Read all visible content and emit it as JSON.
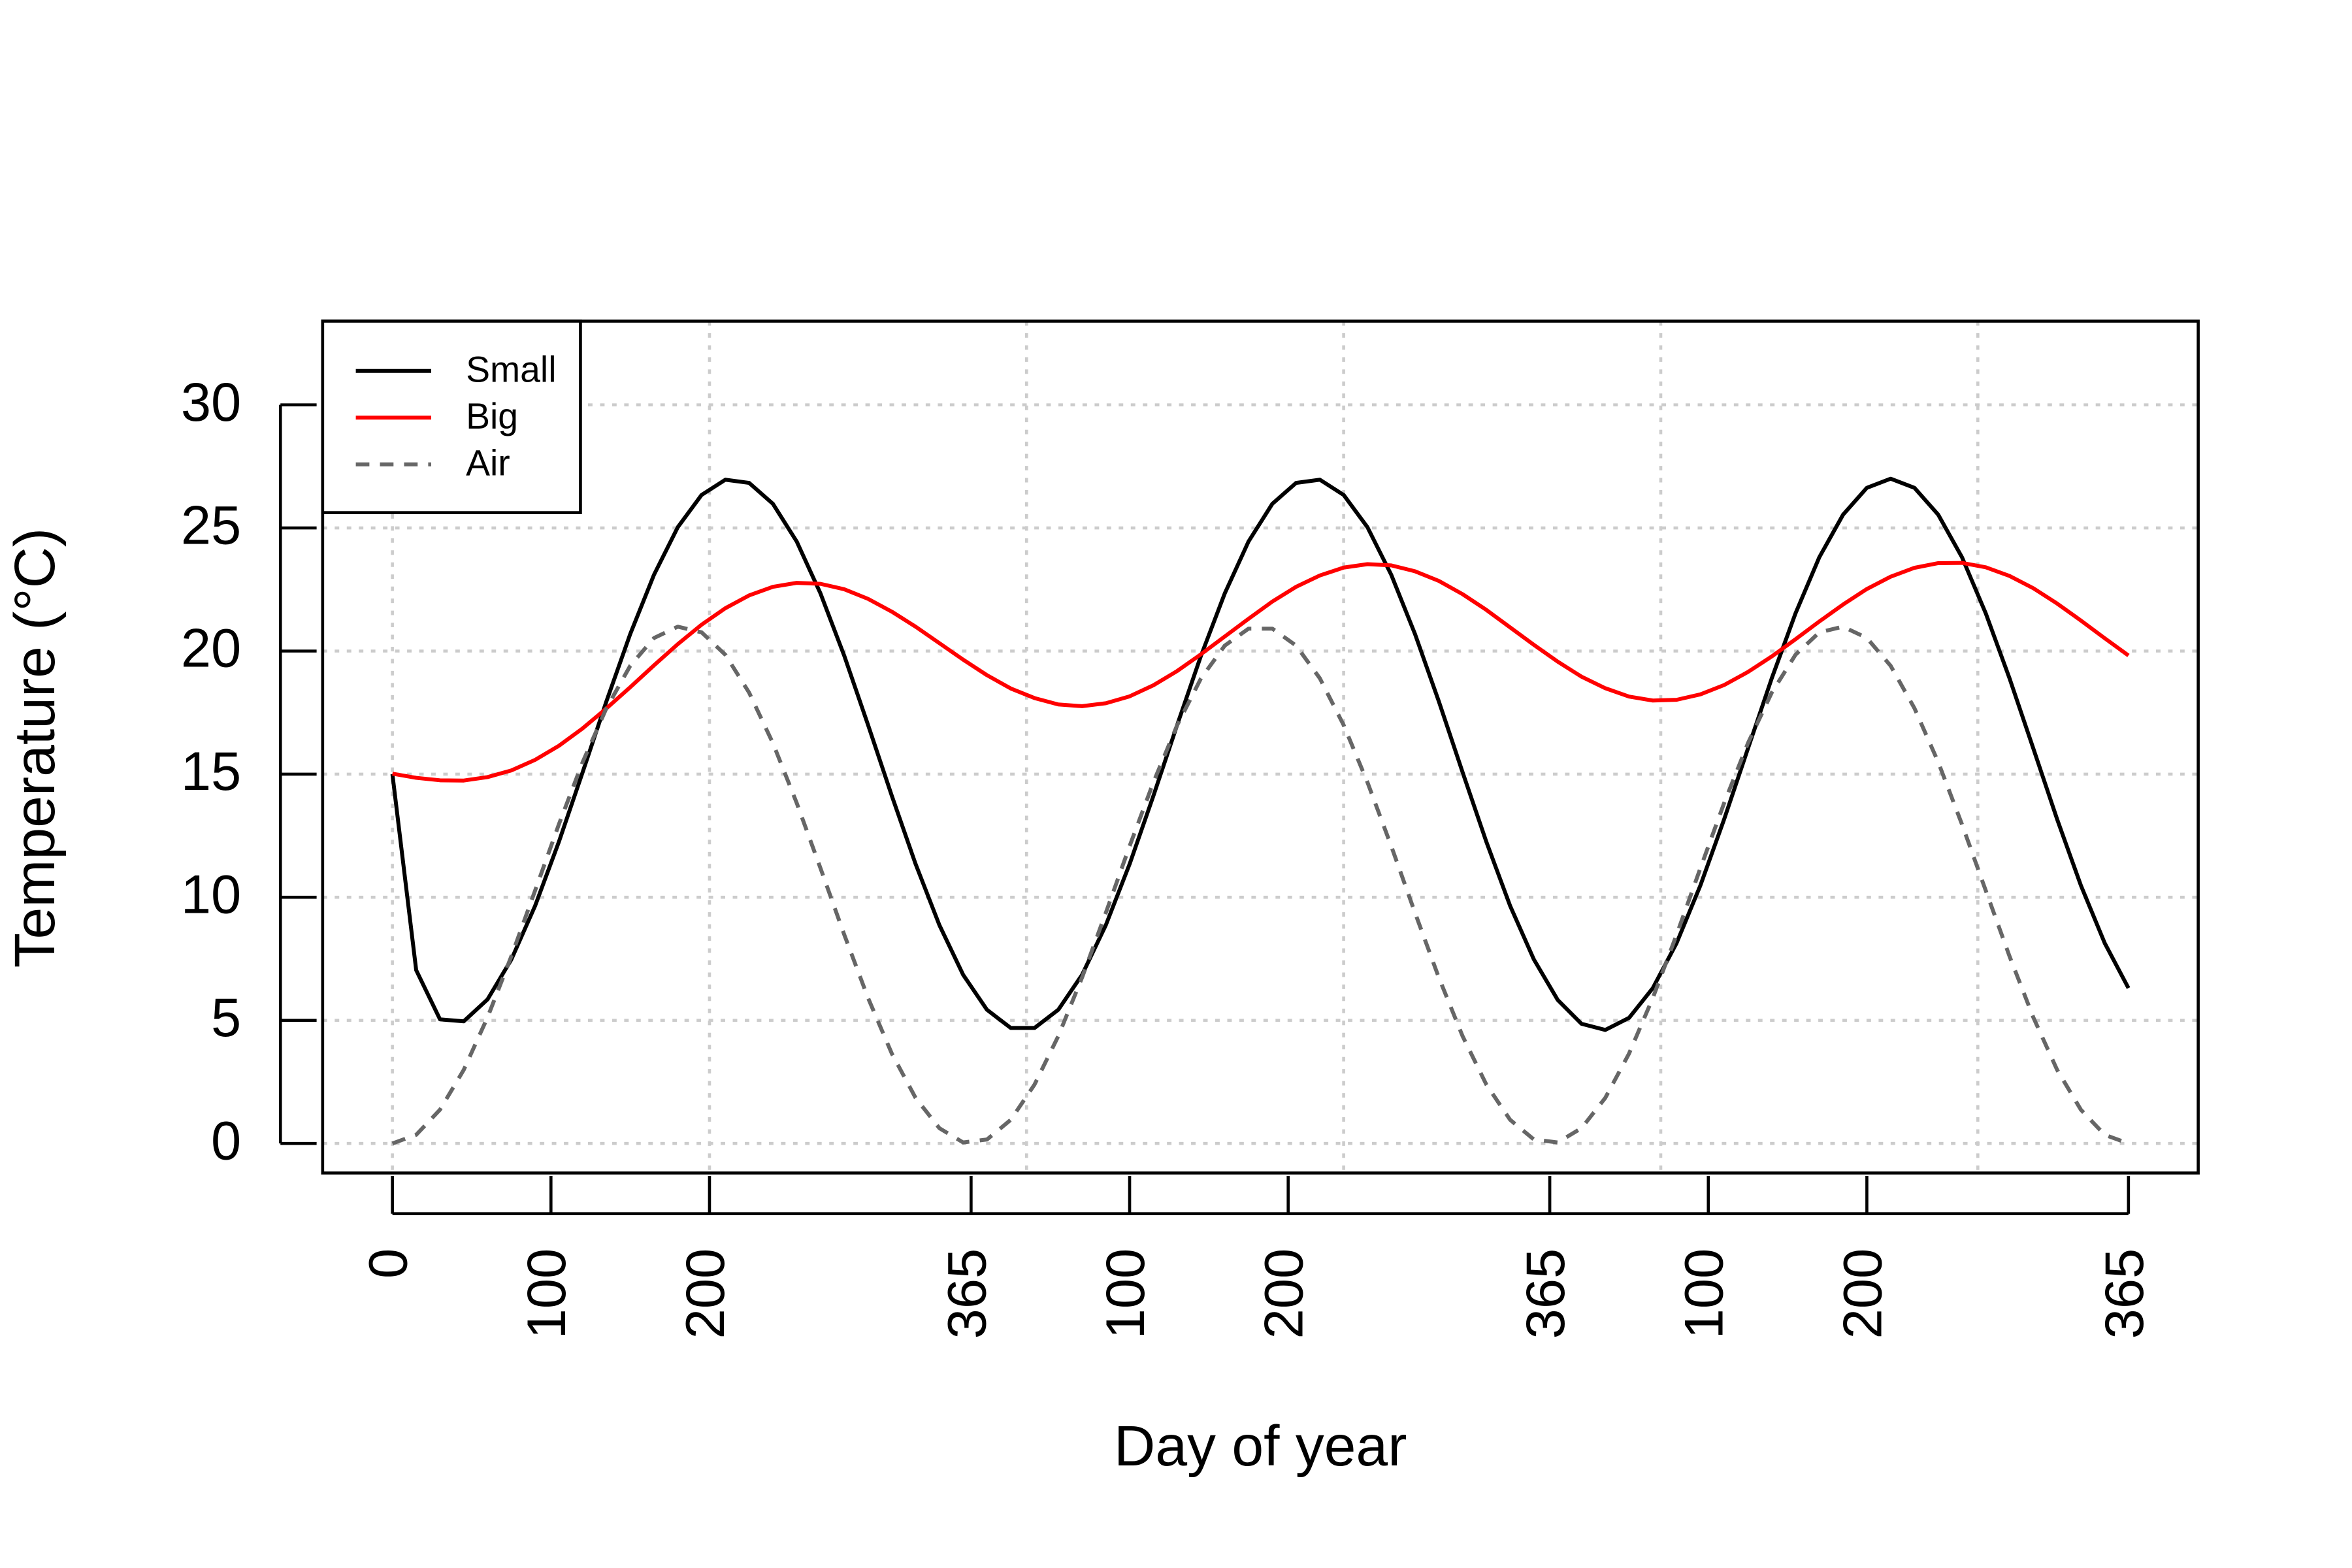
{
  "chart_data": {
    "type": "line",
    "xlabel": "Day of year",
    "ylabel": "Temperature (°C)",
    "x": [
      0,
      15,
      30,
      45,
      60,
      75,
      90,
      105,
      120,
      135,
      150,
      165,
      180,
      195,
      210,
      225,
      240,
      255,
      270,
      285,
      300,
      315,
      330,
      345,
      360,
      375,
      390,
      405,
      420,
      435,
      450,
      465,
      480,
      495,
      510,
      525,
      540,
      555,
      570,
      585,
      600,
      615,
      630,
      645,
      660,
      675,
      690,
      705,
      720,
      735,
      750,
      765,
      780,
      795,
      810,
      825,
      840,
      855,
      870,
      885,
      900,
      915,
      930,
      945,
      960,
      975,
      990,
      1005,
      1020,
      1035,
      1050,
      1065,
      1080,
      1095
    ],
    "series": [
      {
        "name": "Small",
        "color": "#000000",
        "dashed": false,
        "values": [
          15.0,
          7.04,
          5.04,
          4.96,
          5.85,
          7.47,
          9.65,
          12.25,
          15.08,
          17.96,
          20.69,
          23.1,
          25.03,
          26.34,
          26.96,
          26.83,
          25.98,
          24.45,
          22.34,
          19.81,
          17.0,
          14.12,
          11.35,
          8.87,
          6.85,
          5.43,
          4.69,
          4.69,
          5.43,
          6.85,
          8.87,
          11.35,
          14.12,
          17.0,
          19.81,
          22.34,
          24.45,
          25.98,
          26.83,
          26.96,
          26.34,
          25.03,
          23.1,
          20.69,
          17.96,
          15.08,
          12.25,
          9.65,
          7.47,
          5.83,
          4.86,
          4.61,
          5.1,
          6.31,
          8.14,
          10.48,
          13.17,
          16.04,
          18.89,
          21.53,
          23.81,
          25.54,
          26.63,
          27.0,
          26.63,
          25.54,
          23.81,
          21.53,
          18.89,
          16.04,
          13.17,
          10.48,
          8.14,
          6.31
        ]
      },
      {
        "name": "Big",
        "color": "#ff0000",
        "dashed": false,
        "values": [
          15.02,
          14.85,
          14.75,
          14.74,
          14.88,
          15.15,
          15.58,
          16.15,
          16.86,
          17.67,
          18.53,
          19.42,
          20.28,
          21.07,
          21.74,
          22.26,
          22.61,
          22.77,
          22.73,
          22.51,
          22.12,
          21.6,
          20.99,
          20.32,
          19.65,
          19.02,
          18.48,
          18.09,
          17.83,
          17.76,
          17.88,
          18.16,
          18.61,
          19.19,
          19.87,
          20.59,
          21.31,
          22.01,
          22.61,
          23.07,
          23.39,
          23.53,
          23.48,
          23.24,
          22.85,
          22.31,
          21.67,
          20.96,
          20.25,
          19.57,
          18.96,
          18.49,
          18.15,
          17.99,
          18.02,
          18.24,
          18.62,
          19.15,
          19.78,
          20.48,
          21.2,
          21.89,
          22.52,
          23.02,
          23.38,
          23.57,
          23.58,
          23.4,
          23.05,
          22.55,
          21.93,
          21.24,
          20.52,
          19.82
        ]
      },
      {
        "name": "Air",
        "color": "#666666",
        "dashed": true,
        "values": [
          0,
          0.35,
          1.37,
          2.99,
          5.12,
          7.6,
          10.27,
          12.96,
          15.49,
          17.68,
          19.4,
          20.53,
          20.99,
          20.76,
          19.85,
          18.31,
          16.26,
          13.83,
          11.18,
          8.48,
          5.91,
          3.65,
          1.85,
          0.62,
          0.04,
          0.16,
          0.96,
          2.39,
          4.36,
          6.74,
          9.37,
          12.08,
          14.67,
          16.99,
          18.89,
          20.22,
          20.91,
          20.91,
          20.22,
          18.89,
          16.99,
          14.67,
          12.08,
          9.37,
          6.74,
          4.36,
          2.39,
          0.96,
          0.16,
          0.04,
          0.62,
          1.85,
          3.65,
          5.91,
          8.48,
          11.18,
          13.83,
          16.26,
          18.31,
          19.85,
          20.76,
          20.99,
          20.53,
          19.4,
          17.68,
          15.49,
          12.96,
          10.27,
          7.6,
          5.12,
          2.99,
          1.37,
          0.35,
          0
        ]
      }
    ],
    "xlim": [
      -44,
      1139
    ],
    "ylim": [
      -1.2,
      33.4
    ],
    "xticks": [
      0,
      100,
      200,
      365,
      {
        "value": 465,
        "label": "100"
      },
      {
        "value": 565,
        "label": "200"
      },
      {
        "value": 730,
        "label": "365"
      },
      {
        "value": 830,
        "label": "100"
      },
      {
        "value": 930,
        "label": "200"
      },
      {
        "value": 1095,
        "label": "365"
      }
    ],
    "yticks": [
      0,
      5,
      10,
      15,
      20,
      25,
      30
    ],
    "xgrid": [
      0,
      200,
      400,
      600,
      800,
      1000
    ],
    "grid": true,
    "legend": "top-left"
  }
}
